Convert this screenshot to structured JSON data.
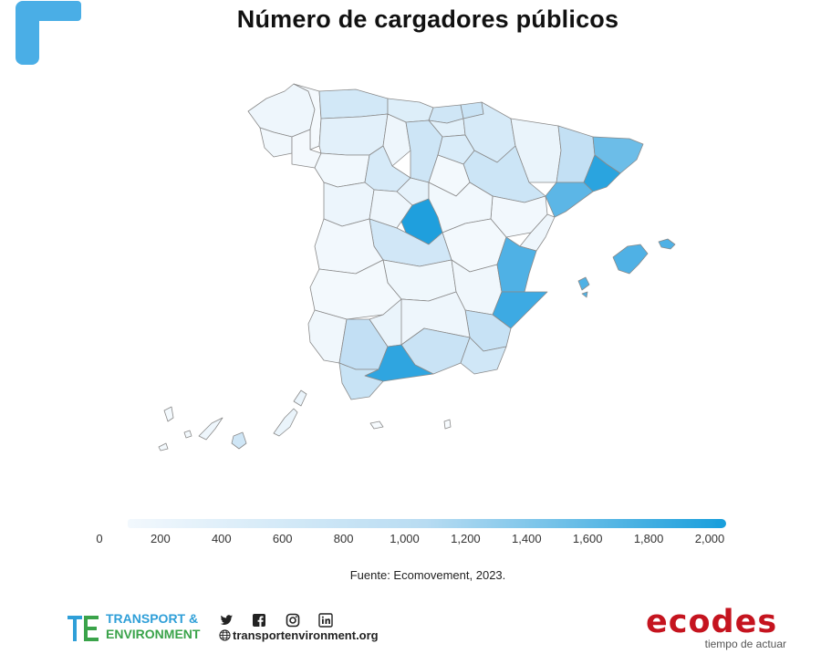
{
  "title": "Número de cargadores públicos",
  "legend": {
    "ticks": [
      "0",
      "200",
      "400",
      "600",
      "800",
      "1,000",
      "1,200",
      "1,400",
      "1,600",
      "1,800",
      "2,000"
    ],
    "min": 0,
    "max": 2000,
    "color_low": "#f2f8fd",
    "color_high": "#1a9fdc"
  },
  "source": "Fuente: Ecomovement, 2023.",
  "footer": {
    "te_line1": "TRANSPORT &",
    "te_line2": "ENVIRONMENT",
    "te_mark": "TE",
    "website": "transportenvironment.org",
    "social_icons": [
      "twitter-icon",
      "facebook-icon",
      "instagram-icon",
      "linkedin-icon"
    ],
    "ecodes_name": "ecodes",
    "ecodes_tagline": "tiempo de actuar"
  },
  "colors": {
    "brand_blue": "#4aaee6",
    "te_blue": "#2f9fd8",
    "te_green": "#3aa34a",
    "ecodes_red": "#c5141f",
    "map_stroke": "#8a8a8a"
  }
}
